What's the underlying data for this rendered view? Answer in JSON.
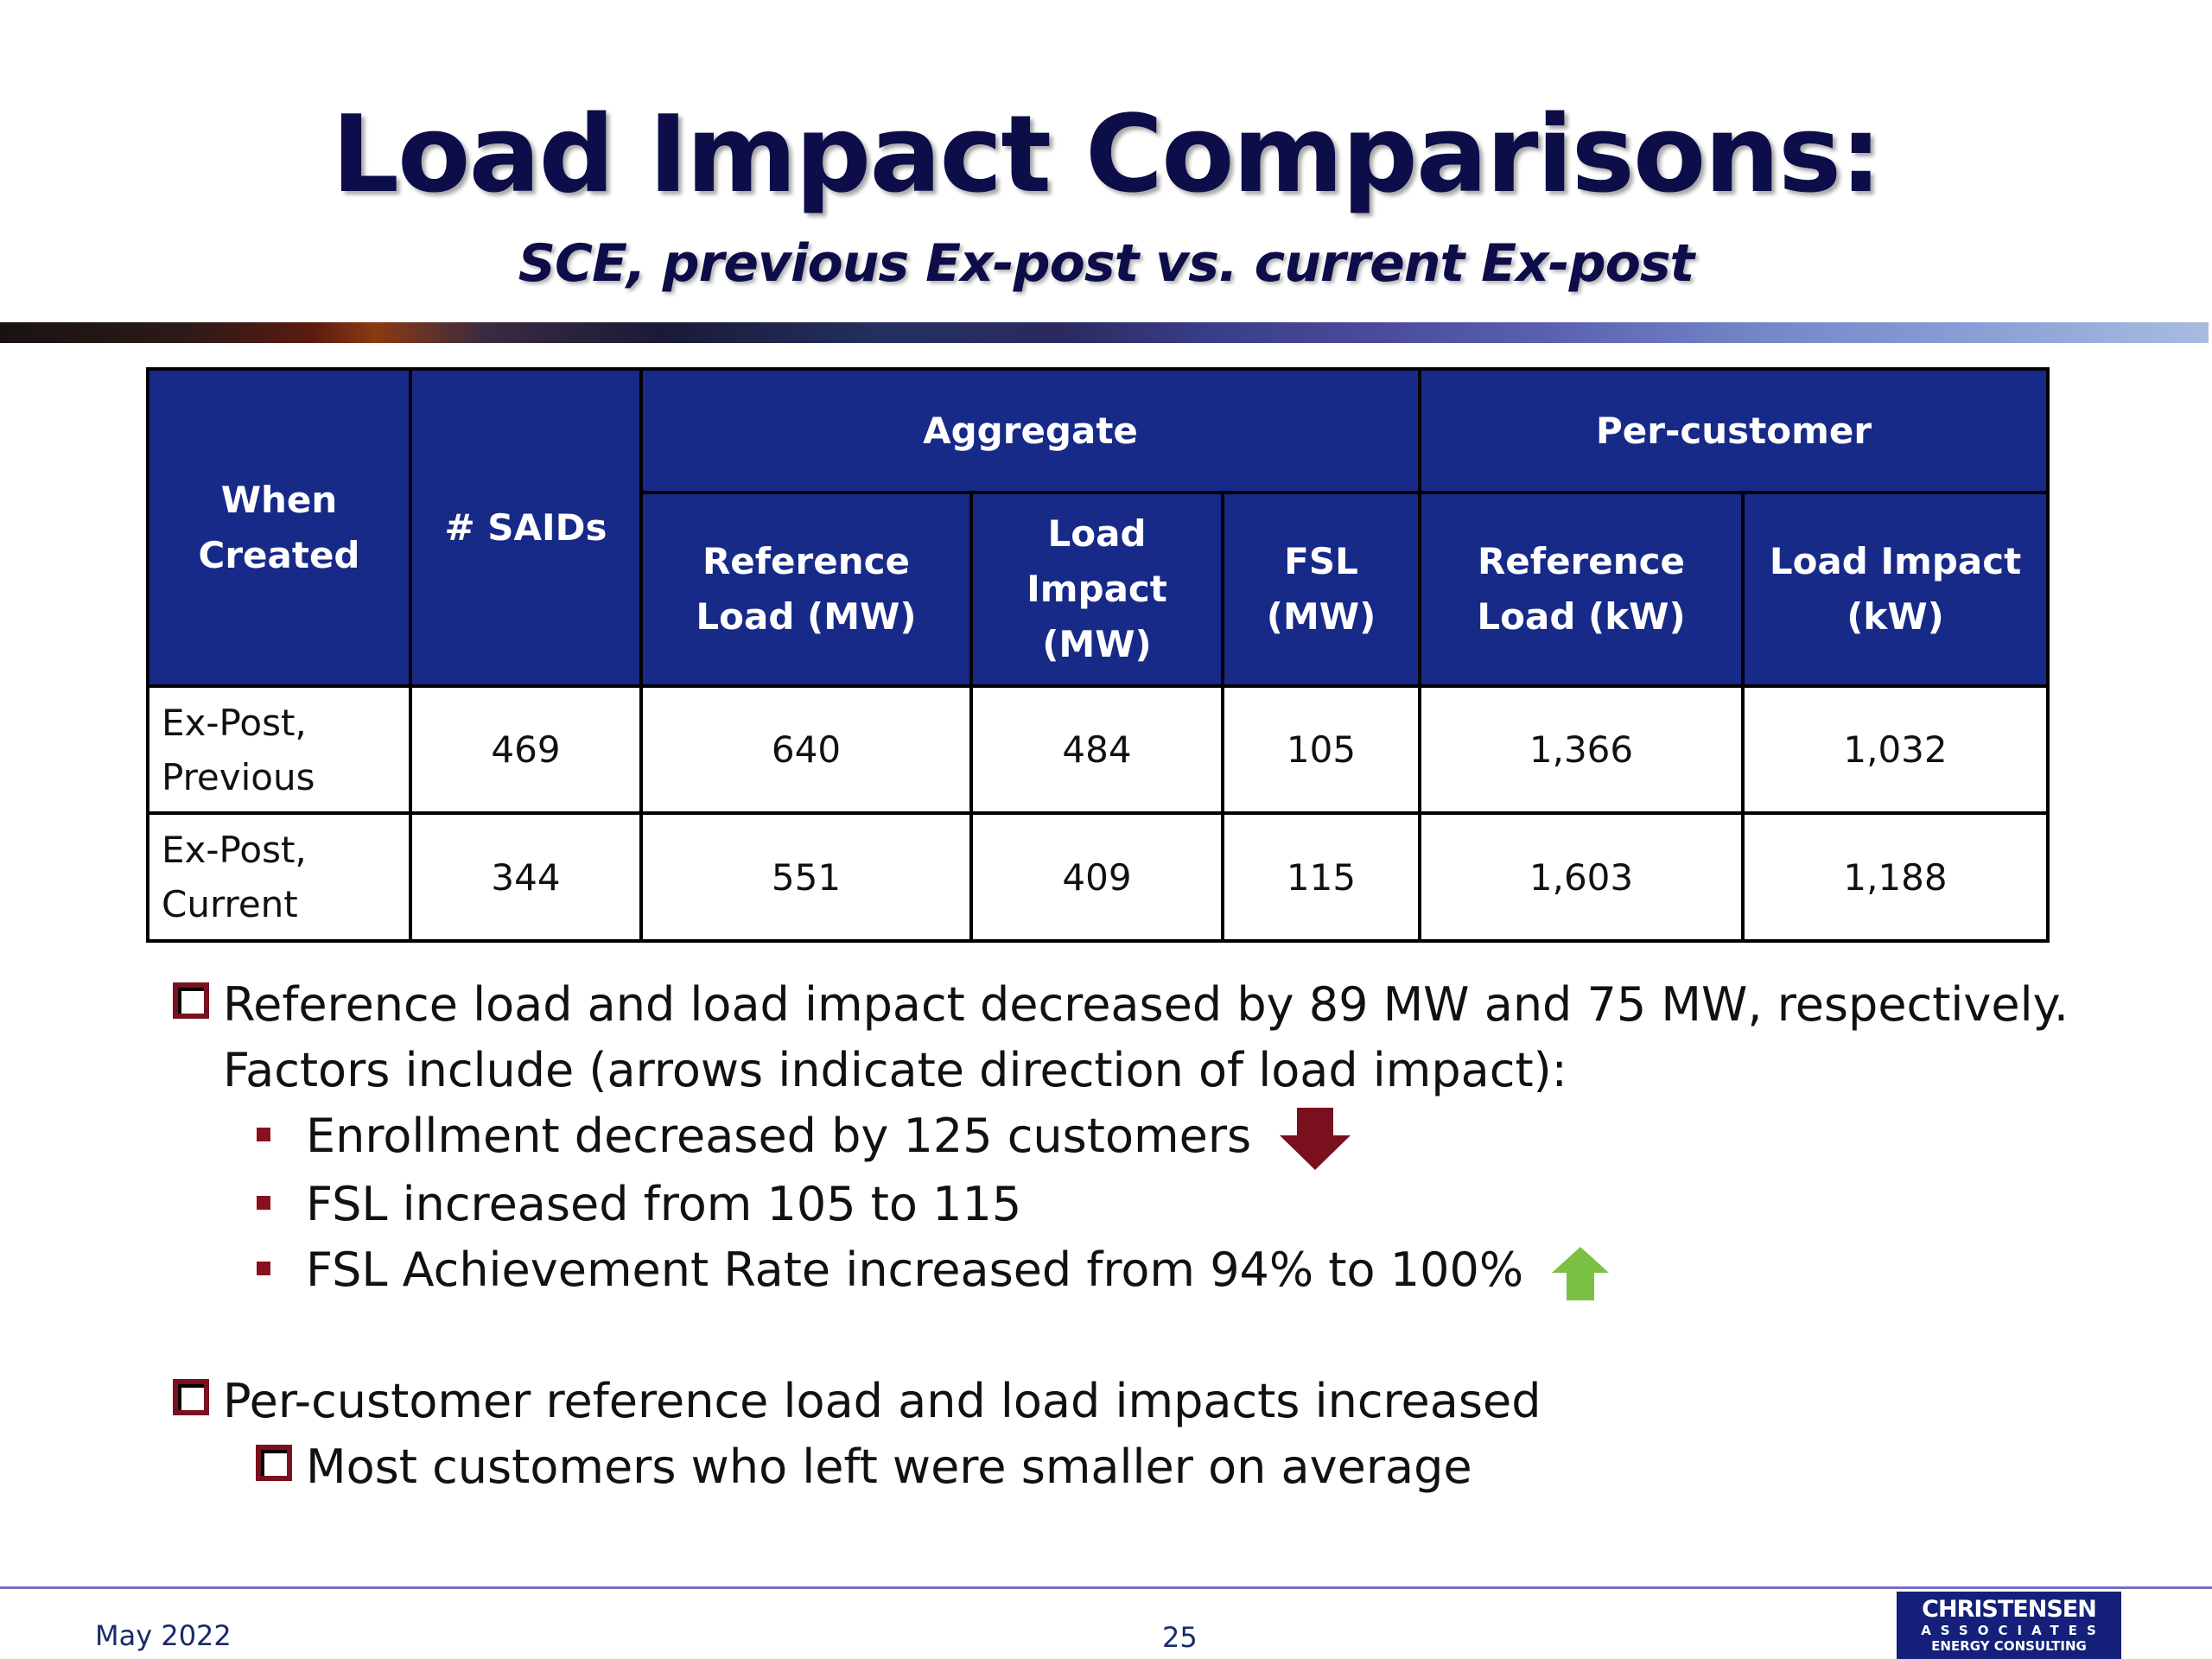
{
  "slide": {
    "title": "Load Impact Comparisons:",
    "subtitle": "SCE, previous Ex-post vs. current Ex-post"
  },
  "table": {
    "headers": {
      "when_created": "When Created",
      "saids": "# SAIDs",
      "aggregate": "Aggregate",
      "per_customer": "Per-customer",
      "agg_ref_load": "Reference Load (MW)",
      "agg_load_impact": "Load Impact (MW)",
      "fsl": "FSL (MW)",
      "pc_ref_load": "Reference Load (kW)",
      "pc_load_impact": "Load Impact (kW)"
    },
    "rows": [
      {
        "label": "Ex-Post, Previous",
        "saids": "469",
        "agg_ref": "640",
        "agg_li": "484",
        "fsl": "105",
        "pc_ref": "1,366",
        "pc_li": "1,032"
      },
      {
        "label": "Ex-Post, Current",
        "saids": "344",
        "agg_ref": "551",
        "agg_li": "409",
        "fsl": "115",
        "pc_ref": "1,603",
        "pc_li": "1,188"
      }
    ]
  },
  "bullets": {
    "b1_line1": "Reference load and load impact decreased by 89 MW and 75 MW, respectively.",
    "b1_line2": "Factors include (arrows indicate direction of load impact):",
    "sub1": "Enrollment decreased by 125 customers",
    "sub2": "FSL increased from 105 to 115",
    "sub3": "FSL Achievement Rate increased from 94% to 100%",
    "b2": "Per-customer reference load and load impacts increased",
    "b2_sub": "Most customers who left were smaller on average"
  },
  "footer": {
    "date": "May 2022",
    "page": "25",
    "logo_line1": "CHRISTENSEN",
    "logo_line2": "ASSOCIATES",
    "logo_line3": "ENERGY CONSULTING"
  },
  "colors": {
    "title": "#0d0d4a",
    "header_bg": "#172a88",
    "bullet_box": "#7a1020",
    "arrow_down": "#7a0f1e",
    "arrow_up": "#7ac143"
  },
  "icons": {
    "down": "down-arrow-icon",
    "up": "up-arrow-icon"
  }
}
